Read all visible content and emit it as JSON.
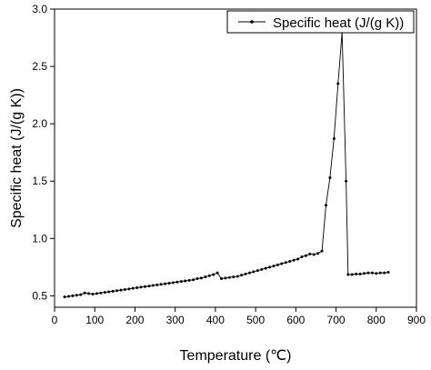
{
  "chart_data": {
    "type": "line",
    "title": "",
    "xlabel": "Temperature (℃)",
    "ylabel": "Specific heat (J/(g K))",
    "xlim": [
      0,
      900
    ],
    "ylim": [
      0.4,
      3.0
    ],
    "xticks": [
      0,
      100,
      200,
      300,
      400,
      500,
      600,
      700,
      800,
      900
    ],
    "yticks": [
      0.5,
      1.0,
      1.5,
      2.0,
      2.5,
      3.0
    ],
    "xtick_labels": [
      "0",
      "100",
      "200",
      "300",
      "400",
      "500",
      "600",
      "700",
      "800",
      "900"
    ],
    "ytick_labels": [
      "0.5",
      "1.0",
      "1.5",
      "2.0",
      "2.5",
      "3.0"
    ],
    "grid": false,
    "legend_position": "top-right",
    "series": [
      {
        "name": "Specific heat (J/(g K))",
        "color": "#000000",
        "marker": "dot",
        "x": [
          25,
          35,
          45,
          55,
          65,
          75,
          85,
          95,
          105,
          115,
          125,
          135,
          145,
          155,
          165,
          175,
          185,
          195,
          205,
          215,
          225,
          235,
          245,
          255,
          265,
          275,
          285,
          295,
          305,
          315,
          325,
          335,
          345,
          355,
          365,
          375,
          385,
          395,
          405,
          415,
          425,
          435,
          445,
          455,
          465,
          475,
          485,
          495,
          505,
          515,
          525,
          535,
          545,
          555,
          565,
          575,
          585,
          595,
          605,
          615,
          625,
          635,
          645,
          655,
          665,
          675,
          685,
          695,
          705,
          715,
          725,
          730,
          740,
          750,
          760,
          770,
          780,
          790,
          800,
          810,
          820,
          830
        ],
        "y": [
          0.49,
          0.495,
          0.5,
          0.505,
          0.51,
          0.525,
          0.52,
          0.515,
          0.52,
          0.525,
          0.53,
          0.535,
          0.54,
          0.545,
          0.55,
          0.555,
          0.56,
          0.565,
          0.57,
          0.575,
          0.58,
          0.585,
          0.59,
          0.595,
          0.6,
          0.605,
          0.61,
          0.615,
          0.62,
          0.625,
          0.63,
          0.635,
          0.64,
          0.65,
          0.655,
          0.665,
          0.675,
          0.685,
          0.7,
          0.65,
          0.655,
          0.66,
          0.665,
          0.67,
          0.68,
          0.69,
          0.7,
          0.71,
          0.72,
          0.73,
          0.74,
          0.75,
          0.76,
          0.77,
          0.78,
          0.79,
          0.8,
          0.81,
          0.82,
          0.84,
          0.85,
          0.865,
          0.86,
          0.87,
          0.89,
          1.29,
          1.53,
          1.87,
          2.35,
          2.8,
          1.5,
          0.685,
          0.685,
          0.69,
          0.69,
          0.695,
          0.7,
          0.7,
          0.695,
          0.7,
          0.7,
          0.705
        ]
      }
    ]
  }
}
